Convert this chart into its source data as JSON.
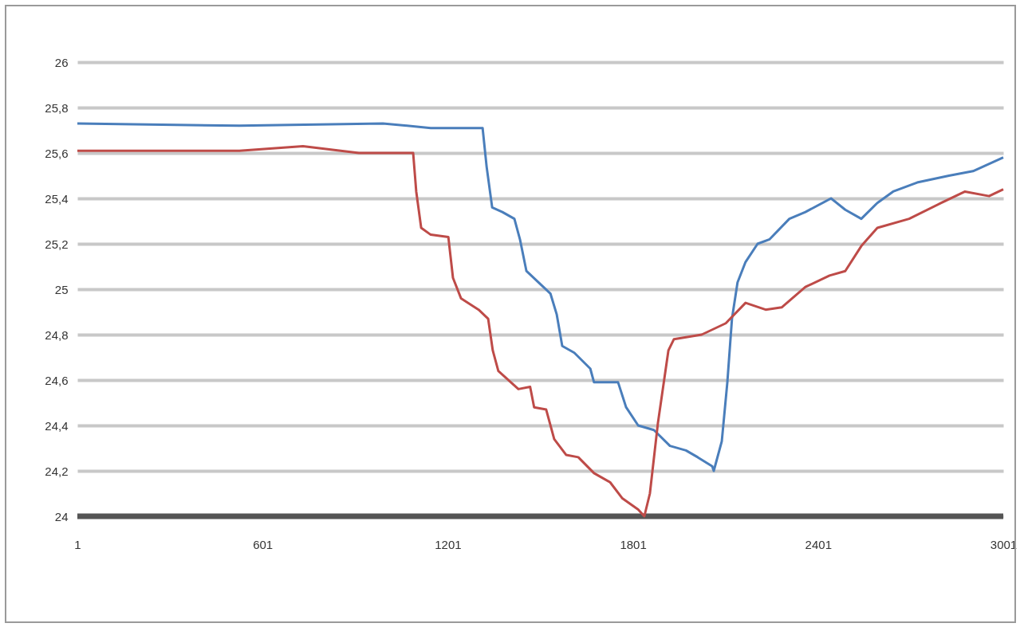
{
  "chart_data": {
    "type": "line",
    "x": [
      1,
      526,
      991,
      1146,
      1314,
      1327,
      1345,
      1378,
      1417,
      1435,
      1456,
      1495,
      1534,
      1554,
      1572,
      1611,
      1663,
      1675,
      1753,
      1779,
      1818,
      1869,
      1921,
      1973,
      2011,
      2058,
      2063,
      2089,
      2107,
      2122,
      2140,
      2166,
      2205,
      2244,
      2308,
      2360,
      2443,
      2489,
      2541,
      2593,
      2644,
      2722,
      2825,
      2903,
      3001
    ],
    "series": [
      {
        "color": "#4a7ebb",
        "values": [
          25.73,
          25.72,
          25.73,
          25.71,
          25.71,
          25.54,
          25.36,
          25.34,
          25.31,
          25.22,
          25.08,
          25.03,
          24.98,
          24.89,
          24.75,
          24.72,
          24.65,
          24.59,
          24.59,
          24.48,
          24.4,
          24.38,
          24.31,
          24.29,
          24.26,
          24.22,
          24.2,
          24.33,
          24.59,
          24.87,
          25.03,
          25.12,
          25.2,
          25.22,
          25.31,
          25.34,
          25.4,
          25.35,
          25.31,
          25.38,
          25.43,
          25.47,
          25.5,
          25.52,
          25.58
        ]
      },
      {
        "color": "#be4b48",
        "x": [
          1,
          526,
          732,
          913,
          1089,
          1099,
          1115,
          1146,
          1203,
          1218,
          1244,
          1301,
          1332,
          1347,
          1365,
          1430,
          1468,
          1481,
          1520,
          1546,
          1585,
          1624,
          1675,
          1727,
          1766,
          1818,
          1838,
          1856,
          1882,
          1916,
          1934,
          2024,
          2102,
          2166,
          2231,
          2283,
          2360,
          2438,
          2489,
          2541,
          2593,
          2696,
          2800,
          2877,
          2955,
          3001
        ],
        "values": [
          25.61,
          25.61,
          25.63,
          25.6,
          25.6,
          25.43,
          25.27,
          25.24,
          25.23,
          25.05,
          24.96,
          24.91,
          24.87,
          24.73,
          24.64,
          24.56,
          24.57,
          24.48,
          24.47,
          24.34,
          24.27,
          24.26,
          24.19,
          24.15,
          24.08,
          24.03,
          24.0,
          24.1,
          24.41,
          24.73,
          24.78,
          24.8,
          24.85,
          24.94,
          24.91,
          24.92,
          25.01,
          25.06,
          25.08,
          25.19,
          25.27,
          25.31,
          25.38,
          25.43,
          25.41,
          25.44
        ]
      }
    ],
    "xlim": [
      1,
      3001
    ],
    "xticks": [
      1,
      601,
      1201,
      1801,
      2401,
      3001
    ],
    "ylim": [
      24,
      26
    ],
    "yticks": [
      {
        "value": 24,
        "label": "24"
      },
      {
        "value": 24.2,
        "label": "24,2"
      },
      {
        "value": 24.4,
        "label": "24,4"
      },
      {
        "value": 24.6,
        "label": "24,6"
      },
      {
        "value": 24.8,
        "label": "24,8"
      },
      {
        "value": 25,
        "label": "25"
      },
      {
        "value": 25.2,
        "label": "25,2"
      },
      {
        "value": 25.4,
        "label": "25,4"
      },
      {
        "value": 25.6,
        "label": "25,6"
      },
      {
        "value": 25.8,
        "label": "25,8"
      },
      {
        "value": 26,
        "label": "26"
      }
    ],
    "grid": "y"
  }
}
